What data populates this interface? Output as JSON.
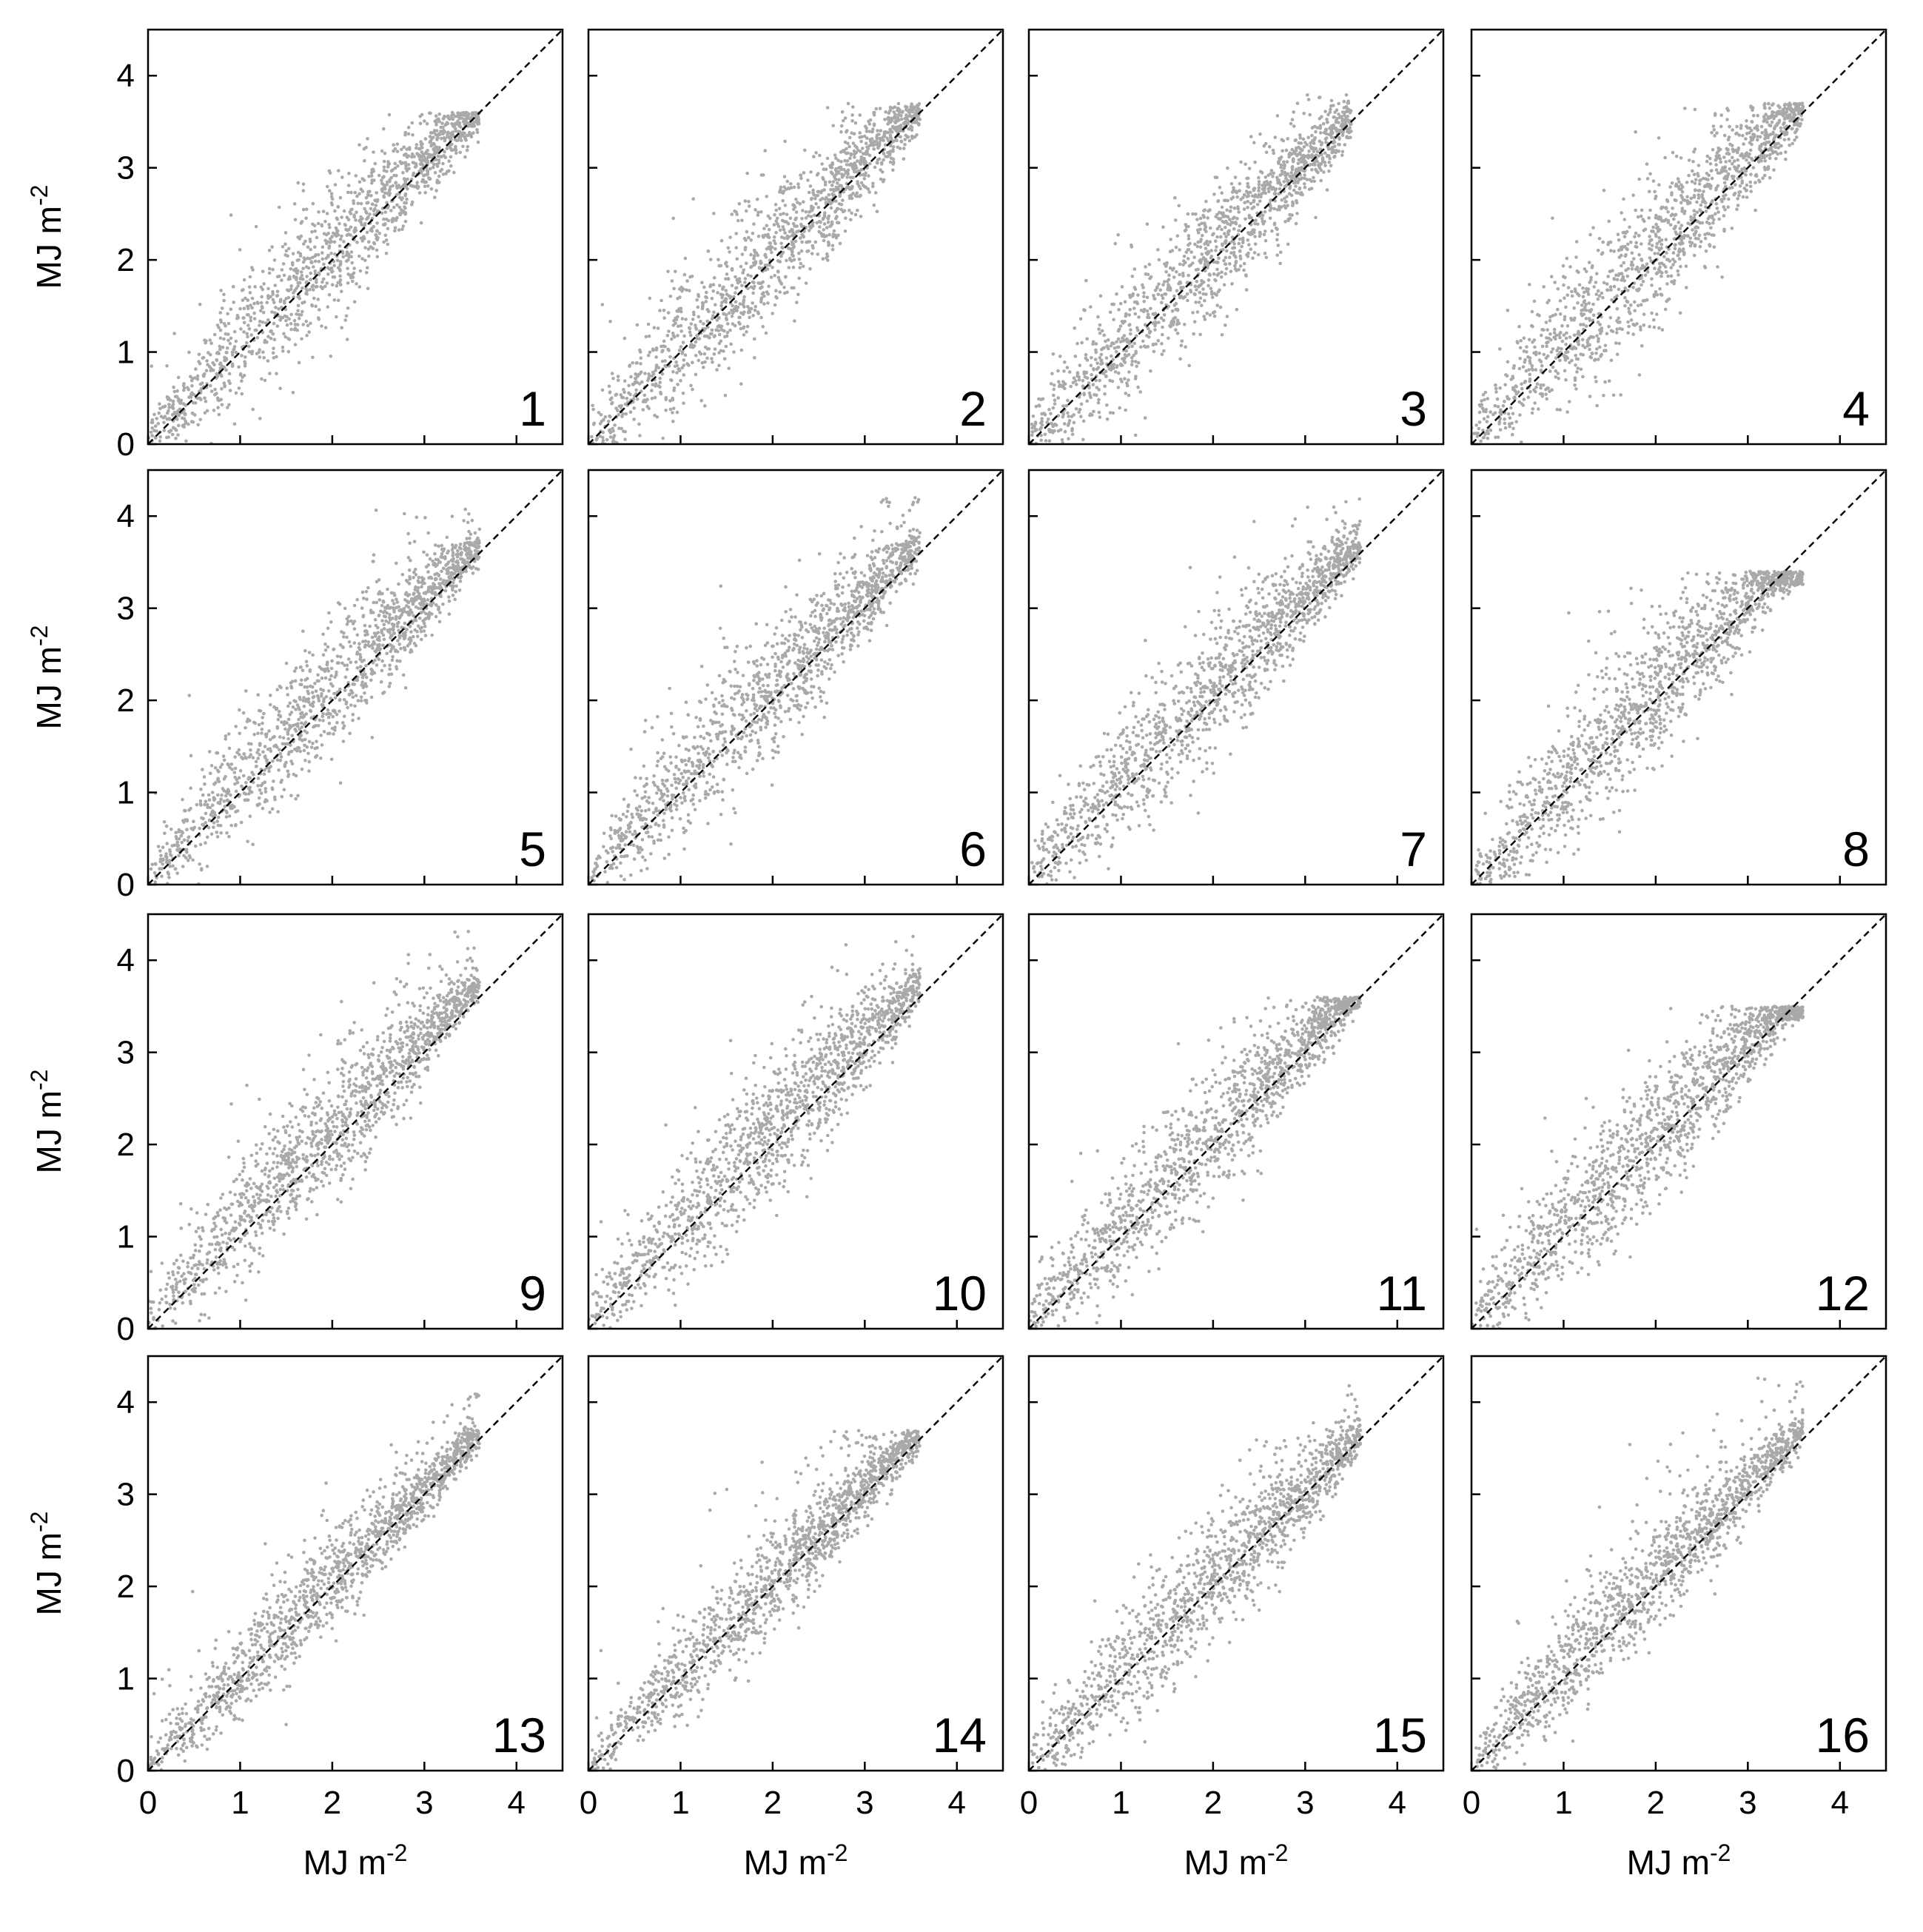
{
  "chart_data": {
    "type": "scatter",
    "layout": "4x4 small multiples",
    "colors": {
      "points": "#a9a9a9",
      "reference_line": "#000000",
      "frame": "#000000",
      "background": "#ffffff"
    },
    "axes": {
      "xlim": [
        0,
        4.5
      ],
      "ylim": [
        0,
        4.5
      ],
      "xticks": [
        0,
        1,
        2,
        3,
        4
      ],
      "yticks": [
        0,
        1,
        2,
        3,
        4
      ],
      "xlabel": "MJ m",
      "xlabel_sup": "-2",
      "ylabel": "MJ m",
      "ylabel_sup": "-2",
      "grid": false,
      "reference_line": {
        "style": "dashed",
        "from": [
          0,
          0
        ],
        "to": [
          4.5,
          4.5
        ]
      }
    },
    "panels": [
      {
        "label": "1",
        "xmax": 3.6,
        "ymax": 3.6,
        "spread": 0.55,
        "bias": 0.05
      },
      {
        "label": "2",
        "xmax": 3.6,
        "ymax": 3.7,
        "spread": 0.55,
        "bias": 0.05
      },
      {
        "label": "3",
        "xmax": 3.5,
        "ymax": 3.8,
        "spread": 0.55,
        "bias": 0.05
      },
      {
        "label": "4",
        "xmax": 3.6,
        "ymax": 3.7,
        "spread": 0.6,
        "bias": 0.1
      },
      {
        "label": "5",
        "xmax": 3.6,
        "ymax": 4.1,
        "spread": 0.5,
        "bias": 0.1
      },
      {
        "label": "6",
        "xmax": 3.6,
        "ymax": 4.2,
        "spread": 0.5,
        "bias": 0.1
      },
      {
        "label": "7",
        "xmax": 3.6,
        "ymax": 4.3,
        "spread": 0.55,
        "bias": 0.1
      },
      {
        "label": "8",
        "xmax": 3.6,
        "ymax": 3.4,
        "spread": 0.55,
        "bias": 0.05
      },
      {
        "label": "9",
        "xmax": 3.6,
        "ymax": 4.4,
        "spread": 0.5,
        "bias": 0.15
      },
      {
        "label": "10",
        "xmax": 3.6,
        "ymax": 4.3,
        "spread": 0.55,
        "bias": 0.15
      },
      {
        "label": "11",
        "xmax": 3.6,
        "ymax": 3.6,
        "spread": 0.5,
        "bias": 0.1
      },
      {
        "label": "12",
        "xmax": 3.6,
        "ymax": 3.5,
        "spread": 0.55,
        "bias": 0.1
      },
      {
        "label": "13",
        "xmax": 3.6,
        "ymax": 4.1,
        "spread": 0.4,
        "bias": 0.05
      },
      {
        "label": "14",
        "xmax": 3.6,
        "ymax": 3.7,
        "spread": 0.4,
        "bias": 0.05
      },
      {
        "label": "15",
        "xmax": 3.6,
        "ymax": 4.2,
        "spread": 0.5,
        "bias": 0.05
      },
      {
        "label": "16",
        "xmax": 3.6,
        "ymax": 4.3,
        "spread": 0.45,
        "bias": 0.1
      }
    ],
    "points_per_panel": 1400
  }
}
